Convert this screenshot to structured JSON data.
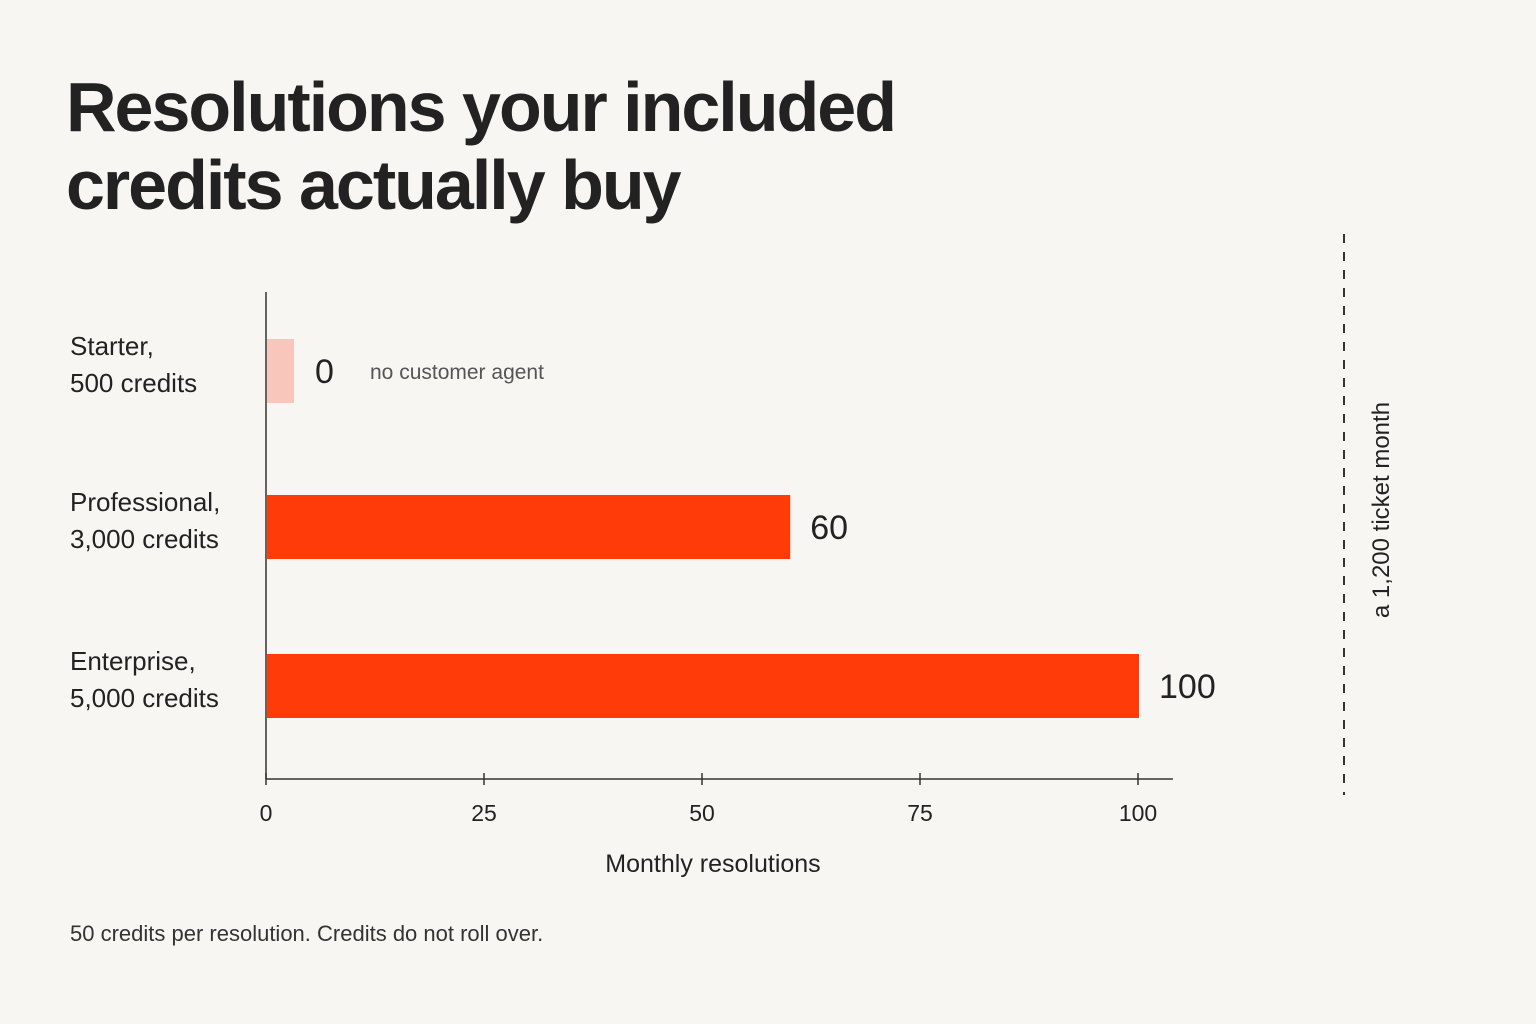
{
  "title_lines": [
    "Resolutions your included",
    "credits actually buy"
  ],
  "footnote": "50 credits per resolution. Credits do not roll over.",
  "colors": {
    "background": "#f8f6f2",
    "bar": "#ff3b0a",
    "bar_zero": "#f8c6bb",
    "text": "#222222",
    "axis": "#333333"
  },
  "chart_data": {
    "type": "bar",
    "orientation": "horizontal",
    "categories": [
      [
        "Starter,",
        "500 credits"
      ],
      [
        "Professional,",
        "3,000 credits"
      ],
      [
        "Enterprise,",
        "5,000 credits"
      ]
    ],
    "values": [
      0,
      60,
      100
    ],
    "value_labels": [
      "0",
      "60",
      "100"
    ],
    "annotations": [
      {
        "category_index": 0,
        "text": "no customer agent"
      }
    ],
    "xlabel": "Monthly resolutions",
    "ylabel": "",
    "xlim": [
      0,
      104
    ],
    "xticks": [
      0,
      25,
      50,
      75,
      100
    ],
    "grid": false,
    "reference_line": {
      "label": "a 1,200 ticket month",
      "style": "dashed",
      "orientation": "vertical"
    }
  }
}
